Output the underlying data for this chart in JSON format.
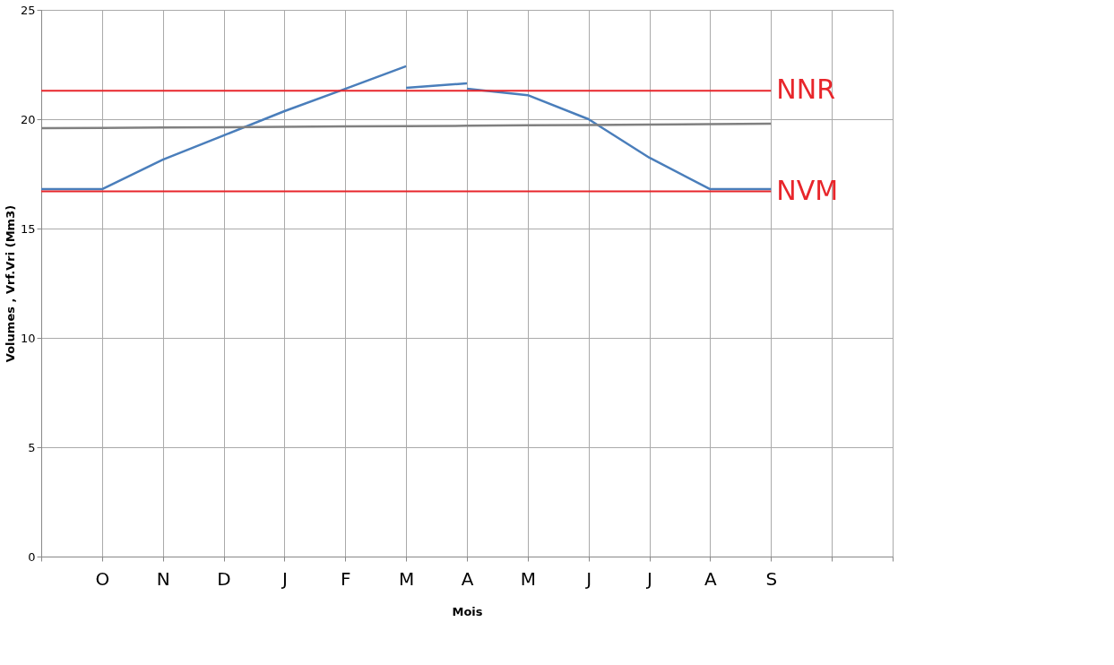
{
  "chart_data": {
    "type": "line",
    "xlabel": "Mois",
    "ylabel": "Volumes , Vrf.Vri (Mm3)",
    "categories": [
      null,
      "O",
      "N",
      "D",
      "J",
      "F",
      "M",
      "A",
      "M",
      "J",
      "J",
      "A",
      "S",
      null,
      null
    ],
    "ylim": [
      0,
      25
    ],
    "yticks": [
      0,
      5,
      10,
      15,
      20,
      25
    ],
    "grid": true,
    "marker": "none",
    "line_style": "solid",
    "series": [
      {
        "color": "#4a7ebb",
        "values": [
          16.8,
          16.8,
          18.15,
          19.26,
          20.37,
          21.39,
          22.42,
          null,
          null,
          null,
          null,
          null,
          null,
          null,
          null
        ]
      },
      {
        "color": "#4a7ebb",
        "values": [
          null,
          null,
          null,
          null,
          null,
          null,
          21.43,
          21.64,
          null,
          null,
          null,
          null,
          null,
          null,
          null
        ]
      },
      {
        "color": "#4a7ebb",
        "values": [
          null,
          null,
          null,
          null,
          null,
          null,
          null,
          21.39,
          21.1,
          20.0,
          18.24,
          16.8,
          16.8,
          null,
          null
        ]
      },
      {
        "color": "#808080",
        "values": [
          19.59,
          19.6,
          19.62,
          19.63,
          19.65,
          19.67,
          19.68,
          19.7,
          19.72,
          19.73,
          19.75,
          19.77,
          19.79,
          null,
          null
        ]
      }
    ],
    "ref_lines": [
      {
        "axis": "y",
        "value": 21.3,
        "label": "NNR",
        "color": "#e8262b"
      },
      {
        "axis": "y",
        "value": 16.7,
        "label": "NVM",
        "color": "#e8262b"
      }
    ]
  }
}
